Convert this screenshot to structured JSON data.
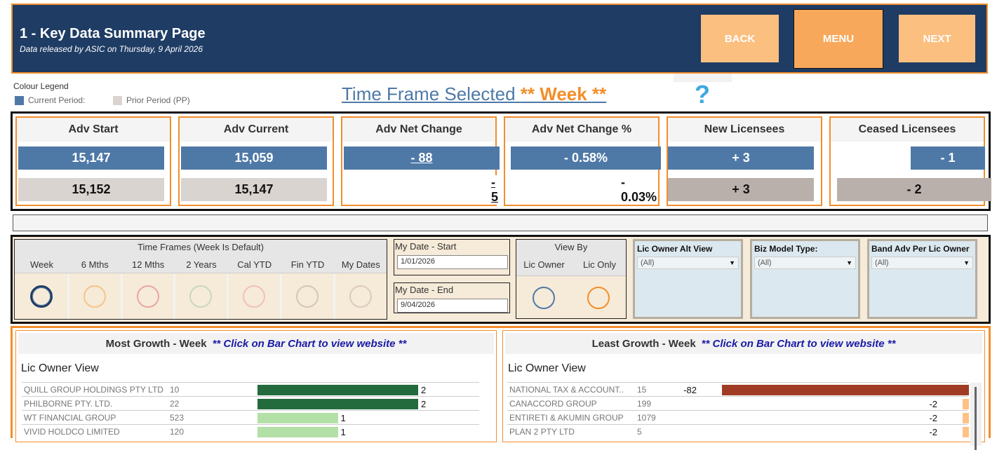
{
  "header": {
    "title": "1 - Key Data Summary Page",
    "subtitle": "Data released by ASIC on Thursday, 9 April 2026",
    "back": "BACK",
    "menu": "MENU",
    "next": "NEXT"
  },
  "legend": {
    "title": "Colour Legend",
    "current": "Current Period:",
    "prior": "Prior Period (PP)",
    "current_color": "#4e79a7",
    "prior_color": "#dad4d1"
  },
  "time_frame": {
    "label": "Time Frame Selected",
    "value": "** Week **",
    "help": "?"
  },
  "kpis": [
    {
      "title": "Adv Start",
      "current": "15,147",
      "prior": "15,152"
    },
    {
      "title": "Adv Current",
      "current": "15,059",
      "prior": "15,147"
    },
    {
      "title": "Adv Net Change",
      "current": "- 88",
      "prior": "- 5"
    },
    {
      "title": "Adv Net Change %",
      "current": "- 0.58%",
      "prior": "- 0.03%"
    },
    {
      "title": "New Licensees",
      "current": "+ 3",
      "prior": "+ 3"
    },
    {
      "title": "Ceased Licensees",
      "current": "- 1",
      "prior": "- 2"
    }
  ],
  "filters": {
    "time_frames_title": "Time Frames (Week Is Default)",
    "time_frames": [
      "Week",
      "6 Mths",
      "12 Mths",
      "2 Years",
      "Cal YTD",
      "Fin YTD",
      "My Dates"
    ],
    "time_frames_selected": "Week",
    "date_start_label": "My Date - Start",
    "date_start": "1/01/2026",
    "date_end_label": "My Date - End",
    "date_end": "9/04/2026",
    "view_by_title": "View By",
    "view_by": [
      "Lic Owner",
      "Lic Only"
    ],
    "dropdowns": [
      {
        "label": "Lic Owner Alt View",
        "value": "(All)"
      },
      {
        "label": "Biz Model Type:",
        "value": "(All)"
      },
      {
        "label": "Band Adv Per Lic Owner",
        "value": "(All)"
      }
    ]
  },
  "most_growth": {
    "title": "Most Growth - Week",
    "hint": "** Click on Bar Chart to view website **",
    "view": "Lic Owner View",
    "rows": [
      {
        "name": "QUILL GROUP HOLDINGS PTY LTD",
        "count": "10",
        "change": 2
      },
      {
        "name": "PHILBORNE PTY. LTD.",
        "count": "22",
        "change": 2
      },
      {
        "name": "WT FINANCIAL GROUP",
        "count": "523",
        "change": 1
      },
      {
        "name": "VIVID HOLDCO LIMITED",
        "count": "120",
        "change": 1
      }
    ]
  },
  "least_growth": {
    "title": "Least Growth - Week",
    "hint": "** Click on Bar Chart to view website **",
    "view": "Lic Owner View",
    "rows": [
      {
        "name": "NATIONAL TAX & ACCOUNT..",
        "count": "15",
        "change": -82
      },
      {
        "name": "CANACCORD GROUP",
        "count": "199",
        "change": -2
      },
      {
        "name": "ENTIRETI & AKUMIN GROUP",
        "count": "1079",
        "change": -2
      },
      {
        "name": "PLAN 2 PTY LTD",
        "count": "5",
        "change": -2
      }
    ]
  },
  "colors": {
    "header_bg": "#1f3c64",
    "accent": "#f28e2b",
    "growth_dark": "#236b3d",
    "growth_light": "#b3e0a6",
    "decline_dark": "#a03c23",
    "decline_light": "#ffc285"
  }
}
